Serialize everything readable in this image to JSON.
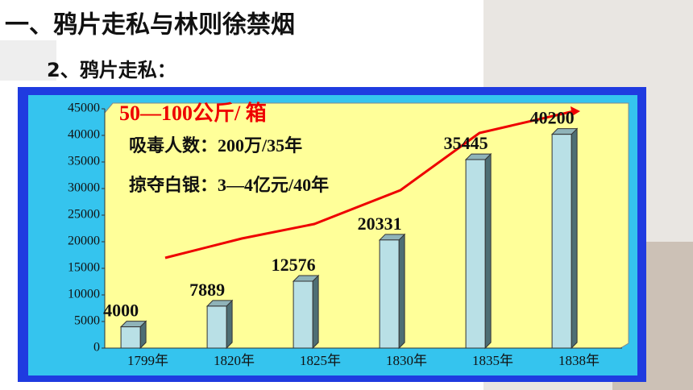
{
  "header": {
    "title": "一、鸦片走私与林则徐禁烟",
    "subtitle": "2、鸦片走私："
  },
  "chart_data": {
    "type": "bar",
    "annotations": [
      "50—100公斤/ 箱",
      "吸毒人数：200万/35年",
      "掠夺白银：3—4亿元/40年"
    ],
    "categories": [
      "1799年",
      "1820年",
      "1825年",
      "1830年",
      "1835年",
      "1838年"
    ],
    "values": [
      4000,
      7889,
      12576,
      20331,
      35445,
      40200
    ],
    "color": "#b9e0e6",
    "ylim": [
      0,
      45000
    ],
    "yticks": [
      0,
      5000,
      10000,
      15000,
      20000,
      25000,
      30000,
      35000,
      40000,
      45000
    ],
    "grid": false
  }
}
